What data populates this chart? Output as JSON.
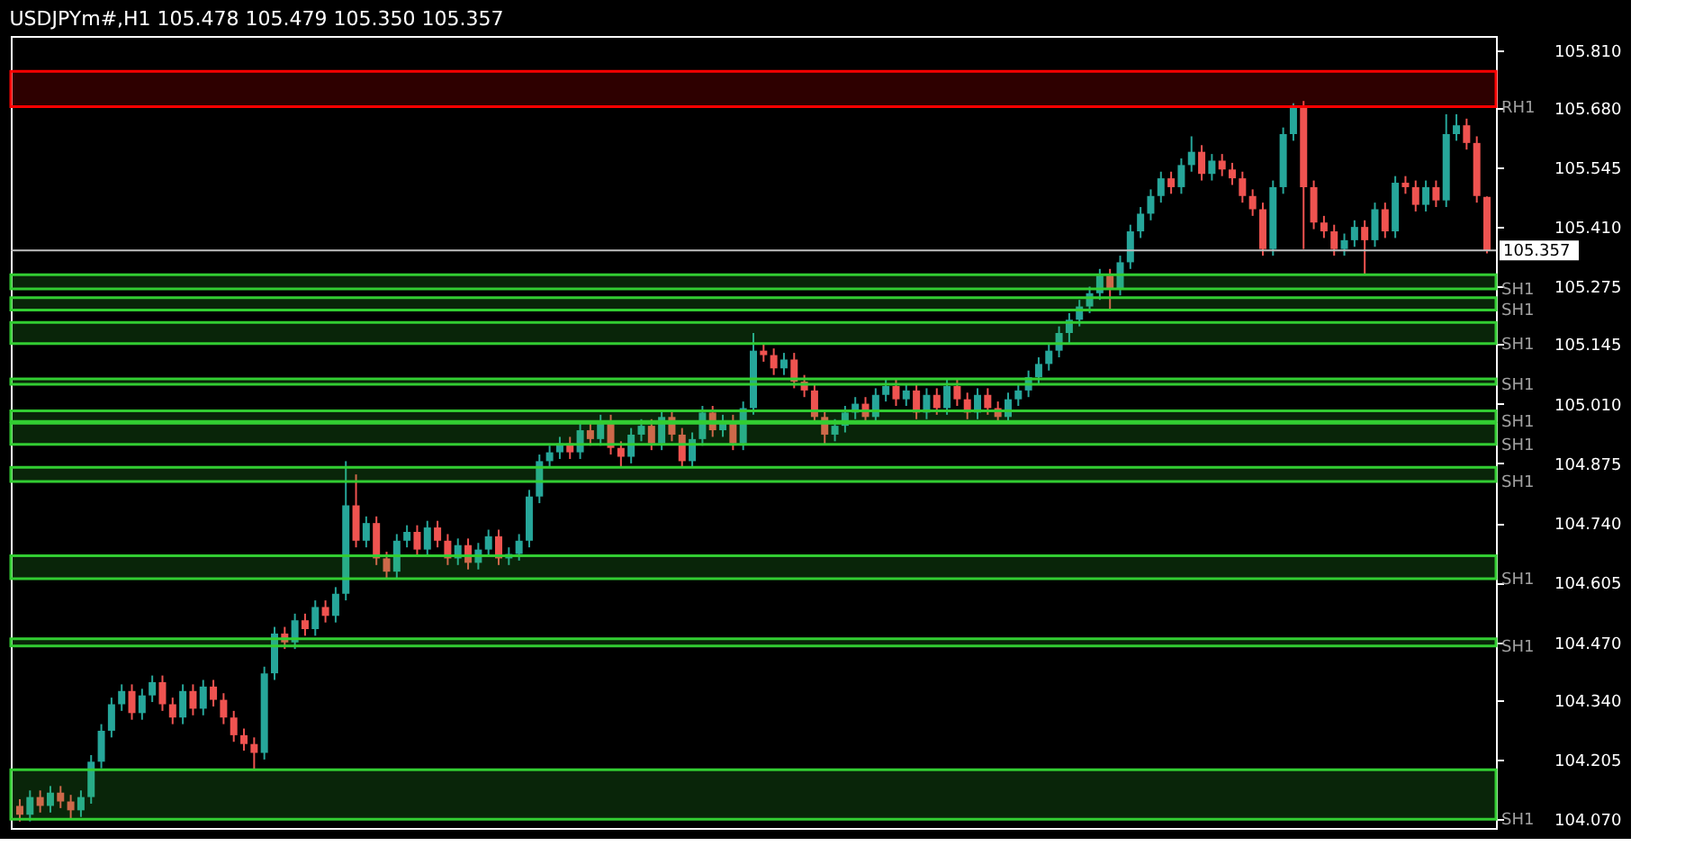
{
  "chart_data": {
    "type": "candlestick",
    "title": "USDJPYm#,H1  105.478 105.479 105.350 105.357",
    "categories": [
      null,
      null,
      null,
      null,
      null,
      null,
      null,
      null,
      null,
      null,
      null,
      null,
      null,
      null,
      null,
      null,
      null,
      null,
      null,
      null,
      null,
      null,
      null,
      null,
      null,
      null,
      null,
      null,
      null,
      null,
      null,
      null,
      null,
      null,
      null,
      null,
      null,
      null,
      null,
      null,
      null,
      null,
      null,
      null,
      null,
      null,
      null,
      null,
      null,
      null,
      null,
      null,
      null,
      null,
      null,
      null,
      null,
      null,
      null,
      null,
      null,
      null,
      null,
      null,
      null,
      null,
      null,
      null,
      null,
      null,
      null,
      null,
      null,
      null,
      null,
      null,
      null,
      null,
      null,
      null,
      null,
      null,
      null,
      null,
      null,
      null,
      null,
      null,
      null,
      null,
      null,
      null,
      null,
      null,
      null,
      null,
      null,
      null,
      null,
      null,
      null,
      null,
      null,
      null,
      null,
      null,
      null,
      null,
      null,
      null,
      null,
      null,
      null,
      null,
      null,
      null,
      null,
      null,
      null,
      null,
      null,
      null,
      null,
      null,
      null,
      null,
      null,
      null,
      null,
      null,
      null,
      null,
      null,
      null,
      null,
      null,
      null,
      null,
      null,
      null,
      null,
      null,
      null,
      null,
      null
    ],
    "ohlc": [
      [
        104.1,
        104.115,
        104.065,
        104.08
      ],
      [
        104.08,
        104.135,
        104.065,
        104.12
      ],
      [
        104.12,
        104.135,
        104.085,
        104.1
      ],
      [
        104.1,
        104.145,
        104.085,
        104.13
      ],
      [
        104.13,
        104.145,
        104.095,
        104.11
      ],
      [
        104.11,
        104.125,
        104.07,
        104.09
      ],
      [
        104.09,
        104.135,
        104.075,
        104.12
      ],
      [
        104.12,
        104.215,
        104.105,
        104.2
      ],
      [
        104.2,
        104.285,
        104.185,
        104.27
      ],
      [
        104.27,
        104.345,
        104.255,
        104.33
      ],
      [
        104.33,
        104.375,
        104.315,
        104.36
      ],
      [
        104.36,
        104.375,
        104.295,
        104.31
      ],
      [
        104.31,
        104.365,
        104.295,
        104.35
      ],
      [
        104.35,
        104.395,
        104.335,
        104.38
      ],
      [
        104.38,
        104.395,
        104.315,
        104.33
      ],
      [
        104.33,
        104.345,
        104.285,
        104.3
      ],
      [
        104.3,
        104.375,
        104.285,
        104.36
      ],
      [
        104.36,
        104.375,
        104.305,
        104.32
      ],
      [
        104.32,
        104.385,
        104.305,
        104.37
      ],
      [
        104.37,
        104.385,
        104.325,
        104.34
      ],
      [
        104.34,
        104.355,
        104.285,
        104.3
      ],
      [
        104.3,
        104.315,
        104.245,
        104.26
      ],
      [
        104.26,
        104.275,
        104.225,
        104.24
      ],
      [
        104.24,
        104.255,
        104.182,
        104.22
      ],
      [
        104.22,
        104.415,
        104.205,
        104.4
      ],
      [
        104.4,
        104.505,
        104.385,
        104.49
      ],
      [
        104.49,
        104.505,
        104.455,
        104.47
      ],
      [
        104.47,
        104.535,
        104.455,
        104.52
      ],
      [
        104.52,
        104.535,
        104.485,
        104.5
      ],
      [
        104.5,
        104.565,
        104.485,
        104.55
      ],
      [
        104.55,
        104.565,
        104.515,
        104.53
      ],
      [
        104.53,
        104.595,
        104.515,
        104.58
      ],
      [
        104.58,
        104.88,
        104.565,
        104.78
      ],
      [
        104.78,
        104.85,
        104.685,
        104.7
      ],
      [
        104.7,
        104.755,
        104.685,
        104.74
      ],
      [
        104.74,
        104.755,
        104.645,
        104.66
      ],
      [
        104.66,
        104.675,
        104.614,
        104.63
      ],
      [
        104.63,
        104.715,
        104.615,
        104.7
      ],
      [
        104.7,
        104.735,
        104.685,
        104.72
      ],
      [
        104.72,
        104.735,
        104.665,
        104.68
      ],
      [
        104.68,
        104.745,
        104.665,
        104.73
      ],
      [
        104.73,
        104.745,
        104.685,
        104.7
      ],
      [
        104.7,
        104.715,
        104.645,
        104.66
      ],
      [
        104.66,
        104.705,
        104.645,
        104.69
      ],
      [
        104.69,
        104.705,
        104.635,
        104.65
      ],
      [
        104.65,
        104.695,
        104.635,
        104.68
      ],
      [
        104.68,
        104.725,
        104.665,
        104.71
      ],
      [
        104.71,
        104.725,
        104.645,
        104.66
      ],
      [
        104.66,
        104.685,
        104.645,
        104.67
      ],
      [
        104.67,
        104.715,
        104.655,
        104.7
      ],
      [
        104.7,
        104.815,
        104.685,
        104.8
      ],
      [
        104.8,
        104.895,
        104.785,
        104.88
      ],
      [
        104.88,
        104.915,
        104.865,
        104.9
      ],
      [
        104.9,
        104.935,
        104.885,
        104.92
      ],
      [
        104.92,
        104.935,
        104.885,
        104.9
      ],
      [
        104.9,
        104.965,
        104.885,
        104.95
      ],
      [
        104.95,
        104.965,
        104.915,
        104.93
      ],
      [
        104.93,
        104.985,
        104.915,
        104.97
      ],
      [
        104.97,
        104.985,
        104.895,
        104.91
      ],
      [
        104.91,
        104.925,
        104.866,
        104.89
      ],
      [
        104.89,
        104.955,
        104.875,
        104.94
      ],
      [
        104.94,
        104.975,
        104.925,
        104.96
      ],
      [
        104.96,
        104.975,
        104.905,
        104.92
      ],
      [
        104.92,
        104.995,
        104.905,
        104.98
      ],
      [
        104.98,
        104.995,
        104.925,
        104.94
      ],
      [
        104.94,
        104.955,
        104.865,
        104.88
      ],
      [
        104.88,
        104.945,
        104.865,
        104.93
      ],
      [
        104.93,
        105.005,
        104.915,
        104.99
      ],
      [
        104.99,
        105.005,
        104.935,
        104.95
      ],
      [
        104.95,
        104.985,
        104.935,
        104.97
      ],
      [
        104.97,
        104.985,
        104.905,
        104.92
      ],
      [
        104.92,
        105.015,
        104.905,
        105.0
      ],
      [
        105.0,
        105.17,
        104.985,
        105.13
      ],
      [
        105.13,
        105.145,
        105.105,
        105.12
      ],
      [
        105.12,
        105.135,
        105.075,
        105.09
      ],
      [
        105.09,
        105.125,
        105.075,
        105.11
      ],
      [
        105.11,
        105.125,
        105.045,
        105.06
      ],
      [
        105.06,
        105.075,
        105.025,
        105.04
      ],
      [
        105.04,
        105.055,
        104.965,
        104.98
      ],
      [
        104.98,
        104.995,
        104.918,
        104.94
      ],
      [
        104.94,
        104.975,
        104.925,
        104.96
      ],
      [
        104.96,
        105.005,
        104.945,
        104.99
      ],
      [
        104.99,
        105.025,
        104.975,
        105.01
      ],
      [
        105.01,
        105.025,
        104.965,
        104.98
      ],
      [
        104.98,
        105.045,
        104.965,
        105.03
      ],
      [
        105.03,
        105.065,
        105.015,
        105.05
      ],
      [
        105.05,
        105.065,
        105.005,
        105.02
      ],
      [
        105.02,
        105.055,
        105.005,
        105.04
      ],
      [
        105.04,
        105.055,
        104.975,
        104.99
      ],
      [
        104.99,
        105.045,
        104.975,
        105.03
      ],
      [
        105.03,
        105.045,
        104.985,
        105.0
      ],
      [
        105.0,
        105.065,
        104.985,
        105.05
      ],
      [
        105.05,
        105.065,
        105.005,
        105.02
      ],
      [
        105.02,
        105.035,
        104.975,
        104.99
      ],
      [
        104.99,
        105.045,
        104.975,
        105.03
      ],
      [
        105.03,
        105.045,
        104.985,
        105.0
      ],
      [
        105.0,
        105.015,
        104.97,
        104.98
      ],
      [
        104.98,
        105.035,
        104.97,
        105.02
      ],
      [
        105.02,
        105.055,
        105.005,
        105.04
      ],
      [
        105.04,
        105.085,
        105.025,
        105.07
      ],
      [
        105.07,
        105.115,
        105.055,
        105.1
      ],
      [
        105.1,
        105.145,
        105.085,
        105.13
      ],
      [
        105.13,
        105.185,
        105.115,
        105.17
      ],
      [
        105.17,
        105.215,
        105.146,
        105.2
      ],
      [
        105.2,
        105.245,
        105.185,
        105.23
      ],
      [
        105.23,
        105.275,
        105.215,
        105.26
      ],
      [
        105.26,
        105.315,
        105.245,
        105.3
      ],
      [
        105.3,
        105.315,
        105.222,
        105.27
      ],
      [
        105.27,
        105.345,
        105.255,
        105.33
      ],
      [
        105.33,
        105.415,
        105.315,
        105.4
      ],
      [
        105.4,
        105.455,
        105.385,
        105.44
      ],
      [
        105.44,
        105.495,
        105.425,
        105.48
      ],
      [
        105.48,
        105.535,
        105.465,
        105.52
      ],
      [
        105.52,
        105.535,
        105.485,
        105.5
      ],
      [
        105.5,
        105.565,
        105.485,
        105.55
      ],
      [
        105.55,
        105.615,
        105.535,
        105.58
      ],
      [
        105.58,
        105.595,
        105.515,
        105.53
      ],
      [
        105.53,
        105.575,
        105.515,
        105.56
      ],
      [
        105.56,
        105.575,
        105.525,
        105.54
      ],
      [
        105.54,
        105.555,
        105.505,
        105.52
      ],
      [
        105.52,
        105.535,
        105.465,
        105.48
      ],
      [
        105.48,
        105.495,
        105.435,
        105.45
      ],
      [
        105.45,
        105.465,
        105.345,
        105.36
      ],
      [
        105.36,
        105.515,
        105.345,
        105.5
      ],
      [
        105.5,
        105.635,
        105.485,
        105.62
      ],
      [
        105.62,
        105.69,
        105.605,
        105.68
      ],
      [
        105.68,
        105.695,
        105.36,
        105.5
      ],
      [
        105.5,
        105.515,
        105.405,
        105.42
      ],
      [
        105.42,
        105.435,
        105.385,
        105.4
      ],
      [
        105.4,
        105.415,
        105.345,
        105.36
      ],
      [
        105.36,
        105.395,
        105.345,
        105.38
      ],
      [
        105.38,
        105.425,
        105.365,
        105.41
      ],
      [
        105.41,
        105.425,
        105.302,
        105.38
      ],
      [
        105.38,
        105.465,
        105.365,
        105.45
      ],
      [
        105.45,
        105.465,
        105.385,
        105.4
      ],
      [
        105.4,
        105.525,
        105.385,
        105.51
      ],
      [
        105.51,
        105.525,
        105.485,
        105.5
      ],
      [
        105.5,
        105.515,
        105.445,
        105.46
      ],
      [
        105.46,
        105.515,
        105.445,
        105.5
      ],
      [
        105.5,
        105.515,
        105.455,
        105.47
      ],
      [
        105.47,
        105.665,
        105.455,
        105.62
      ],
      [
        105.62,
        105.665,
        105.605,
        105.64
      ],
      [
        105.64,
        105.655,
        105.585,
        105.6
      ],
      [
        105.6,
        105.615,
        105.465,
        105.48
      ],
      [
        105.478,
        105.479,
        105.35,
        105.357
      ]
    ],
    "colors": [
      "#ef5350",
      "#26a69a",
      "#ef5350",
      "#26a69a",
      "#ef5350",
      "#ef5350",
      "#26a69a",
      "#26a69a",
      "#26a69a",
      "#26a69a",
      "#26a69a",
      "#ef5350",
      "#26a69a",
      "#26a69a",
      "#ef5350",
      "#ef5350",
      "#26a69a",
      "#ef5350",
      "#26a69a",
      "#ef5350",
      "#ef5350",
      "#ef5350",
      "#ef5350",
      "#ef5350",
      "#26a69a",
      "#26a69a",
      "#ef5350",
      "#26a69a",
      "#ef5350",
      "#26a69a",
      "#ef5350",
      "#26a69a",
      "#26a69a",
      "#ef5350",
      "#26a69a",
      "#ef5350",
      "#ef5350",
      "#26a69a",
      "#26a69a",
      "#ef5350",
      "#26a69a",
      "#ef5350",
      "#ef5350",
      "#26a69a",
      "#ef5350",
      "#26a69a",
      "#26a69a",
      "#ef5350",
      "#26a69a",
      "#26a69a",
      "#26a69a",
      "#26a69a",
      "#26a69a",
      "#26a69a",
      "#ef5350",
      "#26a69a",
      "#ef5350",
      "#26a69a",
      "#ef5350",
      "#ef5350",
      "#26a69a",
      "#26a69a",
      "#ef5350",
      "#26a69a",
      "#ef5350",
      "#ef5350",
      "#26a69a",
      "#26a69a",
      "#ef5350",
      "#26a69a",
      "#ef5350",
      "#26a69a",
      "#26a69a",
      "#ef5350",
      "#ef5350",
      "#26a69a",
      "#ef5350",
      "#ef5350",
      "#ef5350",
      "#ef5350",
      "#26a69a",
      "#26a69a",
      "#26a69a",
      "#ef5350",
      "#26a69a",
      "#26a69a",
      "#ef5350",
      "#26a69a",
      "#ef5350",
      "#26a69a",
      "#ef5350",
      "#26a69a",
      "#ef5350",
      "#ef5350",
      "#26a69a",
      "#ef5350",
      "#ef5350",
      "#26a69a",
      "#26a69a",
      "#26a69a",
      "#26a69a",
      "#26a69a",
      "#26a69a",
      "#26a69a",
      "#26a69a",
      "#26a69a",
      "#26a69a",
      "#ef5350",
      "#26a69a",
      "#26a69a",
      "#26a69a",
      "#26a69a",
      "#26a69a",
      "#ef5350",
      "#26a69a",
      "#26a69a",
      "#ef5350",
      "#26a69a",
      "#ef5350",
      "#ef5350",
      "#ef5350",
      "#ef5350",
      "#ef5350",
      "#26a69a",
      "#26a69a",
      "#26a69a",
      "#ef5350",
      "#ef5350",
      "#ef5350",
      "#ef5350",
      "#26a69a",
      "#26a69a",
      "#ef5350",
      "#26a69a",
      "#ef5350",
      "#26a69a",
      "#ef5350",
      "#ef5350",
      "#26a69a",
      "#ef5350",
      "#26a69a",
      "#26a69a",
      "#ef5350",
      "#ef5350",
      "#ef5350"
    ],
    "ylim": [
      104.05,
      105.842
    ],
    "yticks": [
      {
        "value": 105.81,
        "label": "105.810"
      },
      {
        "value": 105.68,
        "label": "105.680"
      },
      105.545,
      {
        "value": 105.41,
        "label": "105.410"
      },
      105.275,
      105.145,
      {
        "value": 105.01,
        "label": "105.010"
      },
      104.875,
      {
        "value": 104.74,
        "label": "104.740"
      },
      104.605,
      {
        "value": 104.47,
        "label": "104.470"
      },
      {
        "value": 104.34,
        "label": "104.340"
      },
      104.205,
      {
        "value": 104.07,
        "label": "104.070"
      }
    ],
    "tick_labels": "y",
    "grid": false,
    "ref_lines": [
      {
        "axis": "y",
        "value": 105.357,
        "label": "105.357",
        "color": "#c0c0c0"
      }
    ],
    "bands": [
      {
        "axis": "y",
        "from": 105.682,
        "to": 105.762,
        "label": "RH1",
        "color": "#ff0000"
      },
      {
        "axis": "y",
        "from": 105.27,
        "to": 105.302,
        "label": "SH1",
        "color": "#32cd32"
      },
      {
        "axis": "y",
        "from": 105.222,
        "to": 105.25,
        "label": "SH1",
        "color": "#32cd32"
      },
      {
        "axis": "y",
        "from": 105.146,
        "to": 105.194,
        "label": "SH1",
        "color": "#32cd32"
      },
      {
        "axis": "y",
        "from": 105.054,
        "to": 105.066,
        "label": "SH1",
        "color": "#32cd32"
      },
      {
        "axis": "y",
        "from": 104.97,
        "to": 104.994,
        "label": "SH1",
        "color": "#32cd32"
      },
      {
        "axis": "y",
        "from": 104.918,
        "to": 104.966,
        "label": "SH1",
        "color": "#32cd32"
      },
      {
        "axis": "y",
        "from": 104.834,
        "to": 104.866,
        "label": "SH1",
        "color": "#32cd32"
      },
      {
        "axis": "y",
        "from": 104.614,
        "to": 104.666,
        "label": "SH1",
        "color": "#32cd32"
      },
      {
        "axis": "y",
        "from": 104.462,
        "to": 104.478,
        "label": "SH1",
        "color": "#32cd32"
      },
      {
        "axis": "y",
        "from": 104.07,
        "to": 104.182,
        "label": "SH1",
        "color": "#32cd32"
      }
    ]
  }
}
